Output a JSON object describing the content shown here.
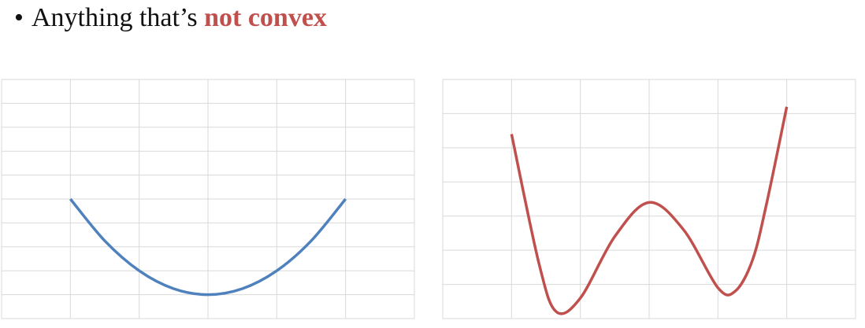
{
  "bullet": {
    "symbol": "•",
    "text": "Anything that’s",
    "emphasis": "not convex",
    "emphasis_color": "#C0504D"
  },
  "chart_data": [
    {
      "type": "line",
      "title": "",
      "xlabel": "",
      "ylabel": "",
      "grid": true,
      "x_gridlines": 6,
      "y_gridlines": 10,
      "xlim": [
        -3,
        3
      ],
      "ylim": [
        -1,
        9
      ],
      "series": [
        {
          "color": "#4F81BD",
          "function": "x^2",
          "x": [
            -2,
            -1.5,
            -1,
            -0.5,
            0,
            0.5,
            1,
            1.5,
            2
          ],
          "values": [
            4,
            2.25,
            1,
            0.25,
            0,
            0.25,
            1,
            2.25,
            4
          ]
        }
      ]
    },
    {
      "type": "line",
      "title": "",
      "xlabel": "",
      "ylabel": "",
      "grid": true,
      "x_gridlines": 6,
      "y_gridlines": 7,
      "xlim": [
        -3,
        3
      ],
      "ylim": [
        0,
        7
      ],
      "series": [
        {
          "color": "#C0504D",
          "function": "w-shaped, two local minima",
          "x": [
            -2,
            -1.6,
            -1.35,
            -1,
            -0.5,
            0,
            0.5,
            1,
            1.25,
            1.5,
            1.7,
            2
          ],
          "values": [
            5.4,
            1.6,
            0.2,
            0.6,
            2.4,
            3.4,
            2.6,
            0.9,
            0.8,
            1.7,
            3.3,
            6.2
          ]
        }
      ]
    }
  ]
}
